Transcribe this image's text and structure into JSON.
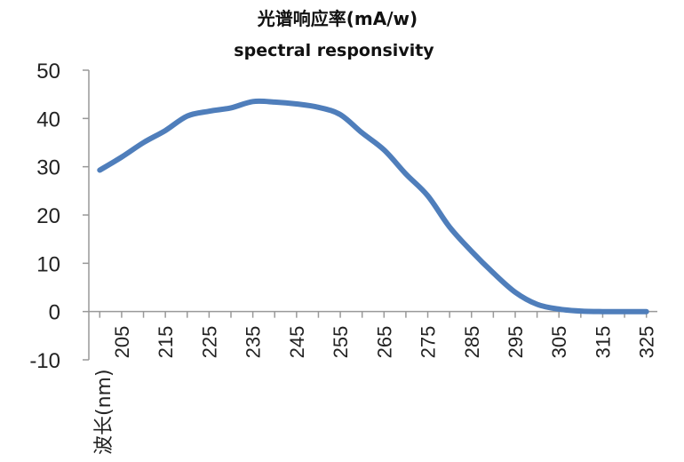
{
  "chart_data": {
    "type": "line",
    "title": "光谱响应率(mA/w)",
    "subtitle": "spectral responsivity",
    "xlabel": "波长(nm)",
    "ylabel": "",
    "ylim": [
      -10,
      50
    ],
    "y_ticks": [
      "50",
      "40",
      "30",
      "20",
      "10",
      "0",
      "-10"
    ],
    "x_ticks": [
      "205",
      "215",
      "225",
      "235",
      "245",
      "255",
      "265",
      "275",
      "285",
      "295",
      "305",
      "315",
      "325"
    ],
    "xlim": [
      197.5,
      327.5
    ],
    "grid": false,
    "legend": "none",
    "line_color": "#4f7ebb",
    "series": [
      {
        "x": [
          200,
          205,
          210,
          215,
          220,
          225,
          230,
          235,
          240,
          245,
          250,
          255,
          260,
          265,
          270,
          275,
          280,
          285,
          290,
          295,
          300,
          305,
          310,
          315,
          320,
          325
        ],
        "values": [
          29.3,
          32.0,
          35.0,
          37.5,
          40.5,
          41.5,
          42.2,
          43.5,
          43.4,
          43.0,
          42.3,
          40.8,
          37.0,
          33.5,
          28.5,
          24.0,
          17.5,
          12.5,
          8.0,
          4.0,
          1.5,
          0.5,
          0.1,
          0.0,
          0.0,
          0.0
        ]
      }
    ]
  }
}
